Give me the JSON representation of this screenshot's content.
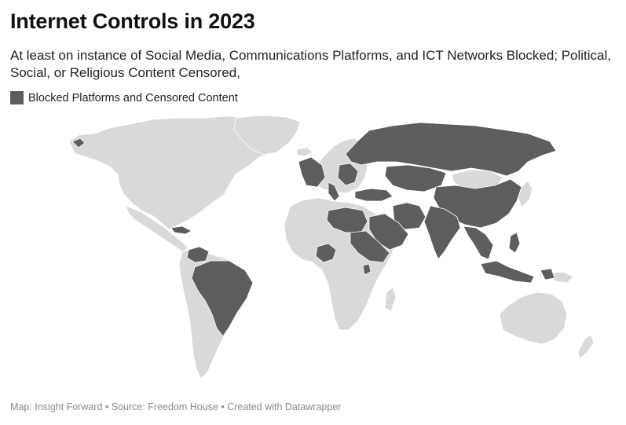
{
  "title": "Internet Controls in 2023",
  "subtitle": "At least on instance of Social Media, Communications Platforms, and ICT Networks Blocked; Political, Social, or Religious Content Censored,",
  "legend": {
    "label": "Blocked Platforms and Censored Content",
    "color": "#5d5d5d"
  },
  "colors": {
    "highlighted": "#5d5d5d",
    "other": "#d9d9d9"
  },
  "footer": {
    "text": "Map: Insight Forward • Source: Freedom House • Created with Datawrapper"
  }
}
